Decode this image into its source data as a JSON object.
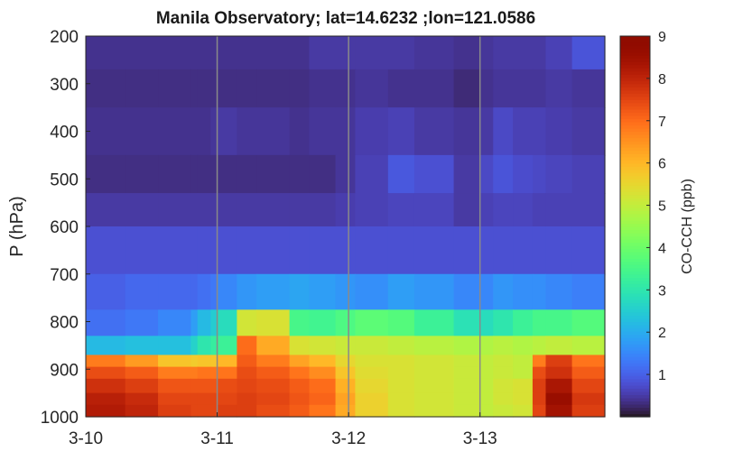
{
  "chart_data": {
    "type": "heatmap",
    "title": "Manila Observatory; lat=14.6232 ;lon=121.0586",
    "ylabel": "P (hPa)",
    "colorbar_label": "CO-CCH (ppb)",
    "x_ticks": [
      "3-10",
      "3-11",
      "3-12",
      "3-13"
    ],
    "y_ticks": [
      200,
      300,
      400,
      500,
      600,
      700,
      800,
      900,
      1000
    ],
    "colorbar_ticks": [
      1,
      2,
      3,
      4,
      5,
      6,
      7,
      8,
      9
    ],
    "xlim_days": [
      0,
      3.95
    ],
    "ylim": [
      200,
      1000
    ],
    "y_reversed": true,
    "clim": [
      0,
      9
    ],
    "colormap": "turbo",
    "grid": "vertical lines at day boundaries",
    "colors": {
      "gridline": "#8a8a8a",
      "axis": "#262626",
      "background": "#ffffff"
    },
    "pressure_level_bounds": [
      200,
      270,
      350,
      450,
      530,
      600,
      700,
      775,
      830,
      870,
      895,
      920,
      950,
      975,
      1000
    ],
    "time_breakpoints_days": [
      0,
      0.3,
      0.55,
      0.8,
      0.85,
      0.95,
      1.0,
      1.15,
      1.3,
      1.55,
      1.7,
      1.9,
      2.05,
      2.3,
      2.5,
      2.8,
      3.0,
      3.1,
      3.25,
      3.4,
      3.5,
      3.7,
      3.95
    ],
    "values": [
      [
        0.4,
        0.4,
        0.4,
        0.4,
        0.4,
        0.4,
        0.4,
        0.4,
        0.4,
        0.4,
        0.5,
        0.5,
        0.5,
        0.5,
        0.45,
        0.4,
        0.45,
        0.5,
        0.5,
        0.5,
        0.6,
        0.85
      ],
      [
        0.35,
        0.35,
        0.35,
        0.35,
        0.35,
        0.35,
        0.35,
        0.35,
        0.35,
        0.35,
        0.4,
        0.4,
        0.45,
        0.4,
        0.4,
        0.3,
        0.4,
        0.45,
        0.45,
        0.45,
        0.5,
        0.45
      ],
      [
        0.4,
        0.4,
        0.4,
        0.4,
        0.4,
        0.45,
        0.5,
        0.45,
        0.45,
        0.4,
        0.45,
        0.45,
        0.55,
        0.6,
        0.5,
        0.45,
        0.5,
        0.7,
        0.6,
        0.6,
        0.55,
        0.5
      ],
      [
        0.35,
        0.35,
        0.35,
        0.35,
        0.35,
        0.35,
        0.35,
        0.35,
        0.35,
        0.35,
        0.35,
        0.45,
        0.6,
        0.9,
        0.8,
        0.5,
        0.7,
        0.85,
        0.75,
        0.7,
        0.65,
        0.6
      ],
      [
        0.5,
        0.5,
        0.5,
        0.5,
        0.5,
        0.5,
        0.5,
        0.5,
        0.5,
        0.5,
        0.5,
        0.55,
        0.6,
        0.65,
        0.65,
        0.5,
        0.6,
        0.65,
        0.65,
        0.6,
        0.6,
        0.6
      ],
      [
        0.8,
        0.8,
        0.8,
        0.8,
        0.8,
        0.8,
        0.8,
        0.8,
        0.8,
        0.8,
        0.8,
        0.8,
        0.8,
        0.8,
        0.8,
        0.8,
        0.8,
        0.8,
        0.8,
        0.8,
        0.8,
        0.8
      ],
      [
        1.0,
        1.1,
        1.1,
        1.1,
        1.2,
        1.3,
        1.5,
        1.7,
        1.8,
        1.9,
        1.8,
        1.7,
        1.6,
        1.8,
        1.7,
        1.5,
        1.5,
        1.7,
        1.6,
        1.6,
        1.5,
        1.4
      ],
      [
        1.2,
        1.3,
        1.5,
        1.8,
        2.2,
        2.5,
        2.8,
        5.2,
        5.3,
        3.5,
        3.4,
        3.6,
        3.8,
        3.7,
        3.3,
        2.9,
        2.8,
        3.0,
        3.3,
        3.5,
        3.5,
        3.7
      ],
      [
        2.2,
        2.3,
        2.3,
        2.6,
        3.0,
        3.2,
        3.3,
        7.0,
        6.2,
        5.3,
        5.2,
        5.1,
        5.1,
        5.0,
        4.9,
        4.8,
        4.8,
        4.9,
        4.8,
        4.9,
        5.0,
        4.9
      ],
      [
        6.8,
        6.4,
        5.8,
        5.7,
        5.8,
        5.8,
        6.0,
        7.2,
        6.8,
        6.3,
        6.0,
        5.5,
        5.3,
        5.3,
        5.2,
        5.1,
        5.0,
        5.1,
        5.0,
        6.8,
        7.6,
        6.9
      ],
      [
        7.4,
        7.2,
        6.8,
        6.8,
        6.9,
        6.9,
        6.9,
        7.4,
        7.2,
        6.9,
        6.6,
        5.8,
        5.4,
        5.3,
        5.2,
        5.1,
        5.0,
        5.1,
        5.0,
        7.4,
        7.8,
        7.2
      ],
      [
        7.8,
        7.6,
        7.3,
        7.3,
        7.3,
        7.3,
        7.4,
        7.5,
        7.4,
        7.2,
        7.0,
        6.1,
        5.5,
        5.3,
        5.2,
        5.1,
        5.0,
        5.2,
        5.3,
        7.6,
        8.3,
        7.5
      ],
      [
        8.1,
        7.9,
        7.5,
        7.5,
        7.5,
        7.5,
        7.5,
        7.6,
        7.5,
        7.3,
        7.1,
        6.3,
        5.6,
        5.3,
        5.2,
        5.1,
        5.0,
        5.2,
        5.3,
        7.6,
        8.6,
        7.7
      ],
      [
        8.2,
        8.0,
        7.6,
        7.5,
        7.5,
        7.5,
        7.6,
        7.6,
        7.4,
        7.2,
        6.9,
        6.2,
        5.6,
        5.3,
        5.2,
        5.1,
        5.0,
        5.1,
        5.2,
        7.5,
        8.4,
        7.6
      ]
    ]
  }
}
